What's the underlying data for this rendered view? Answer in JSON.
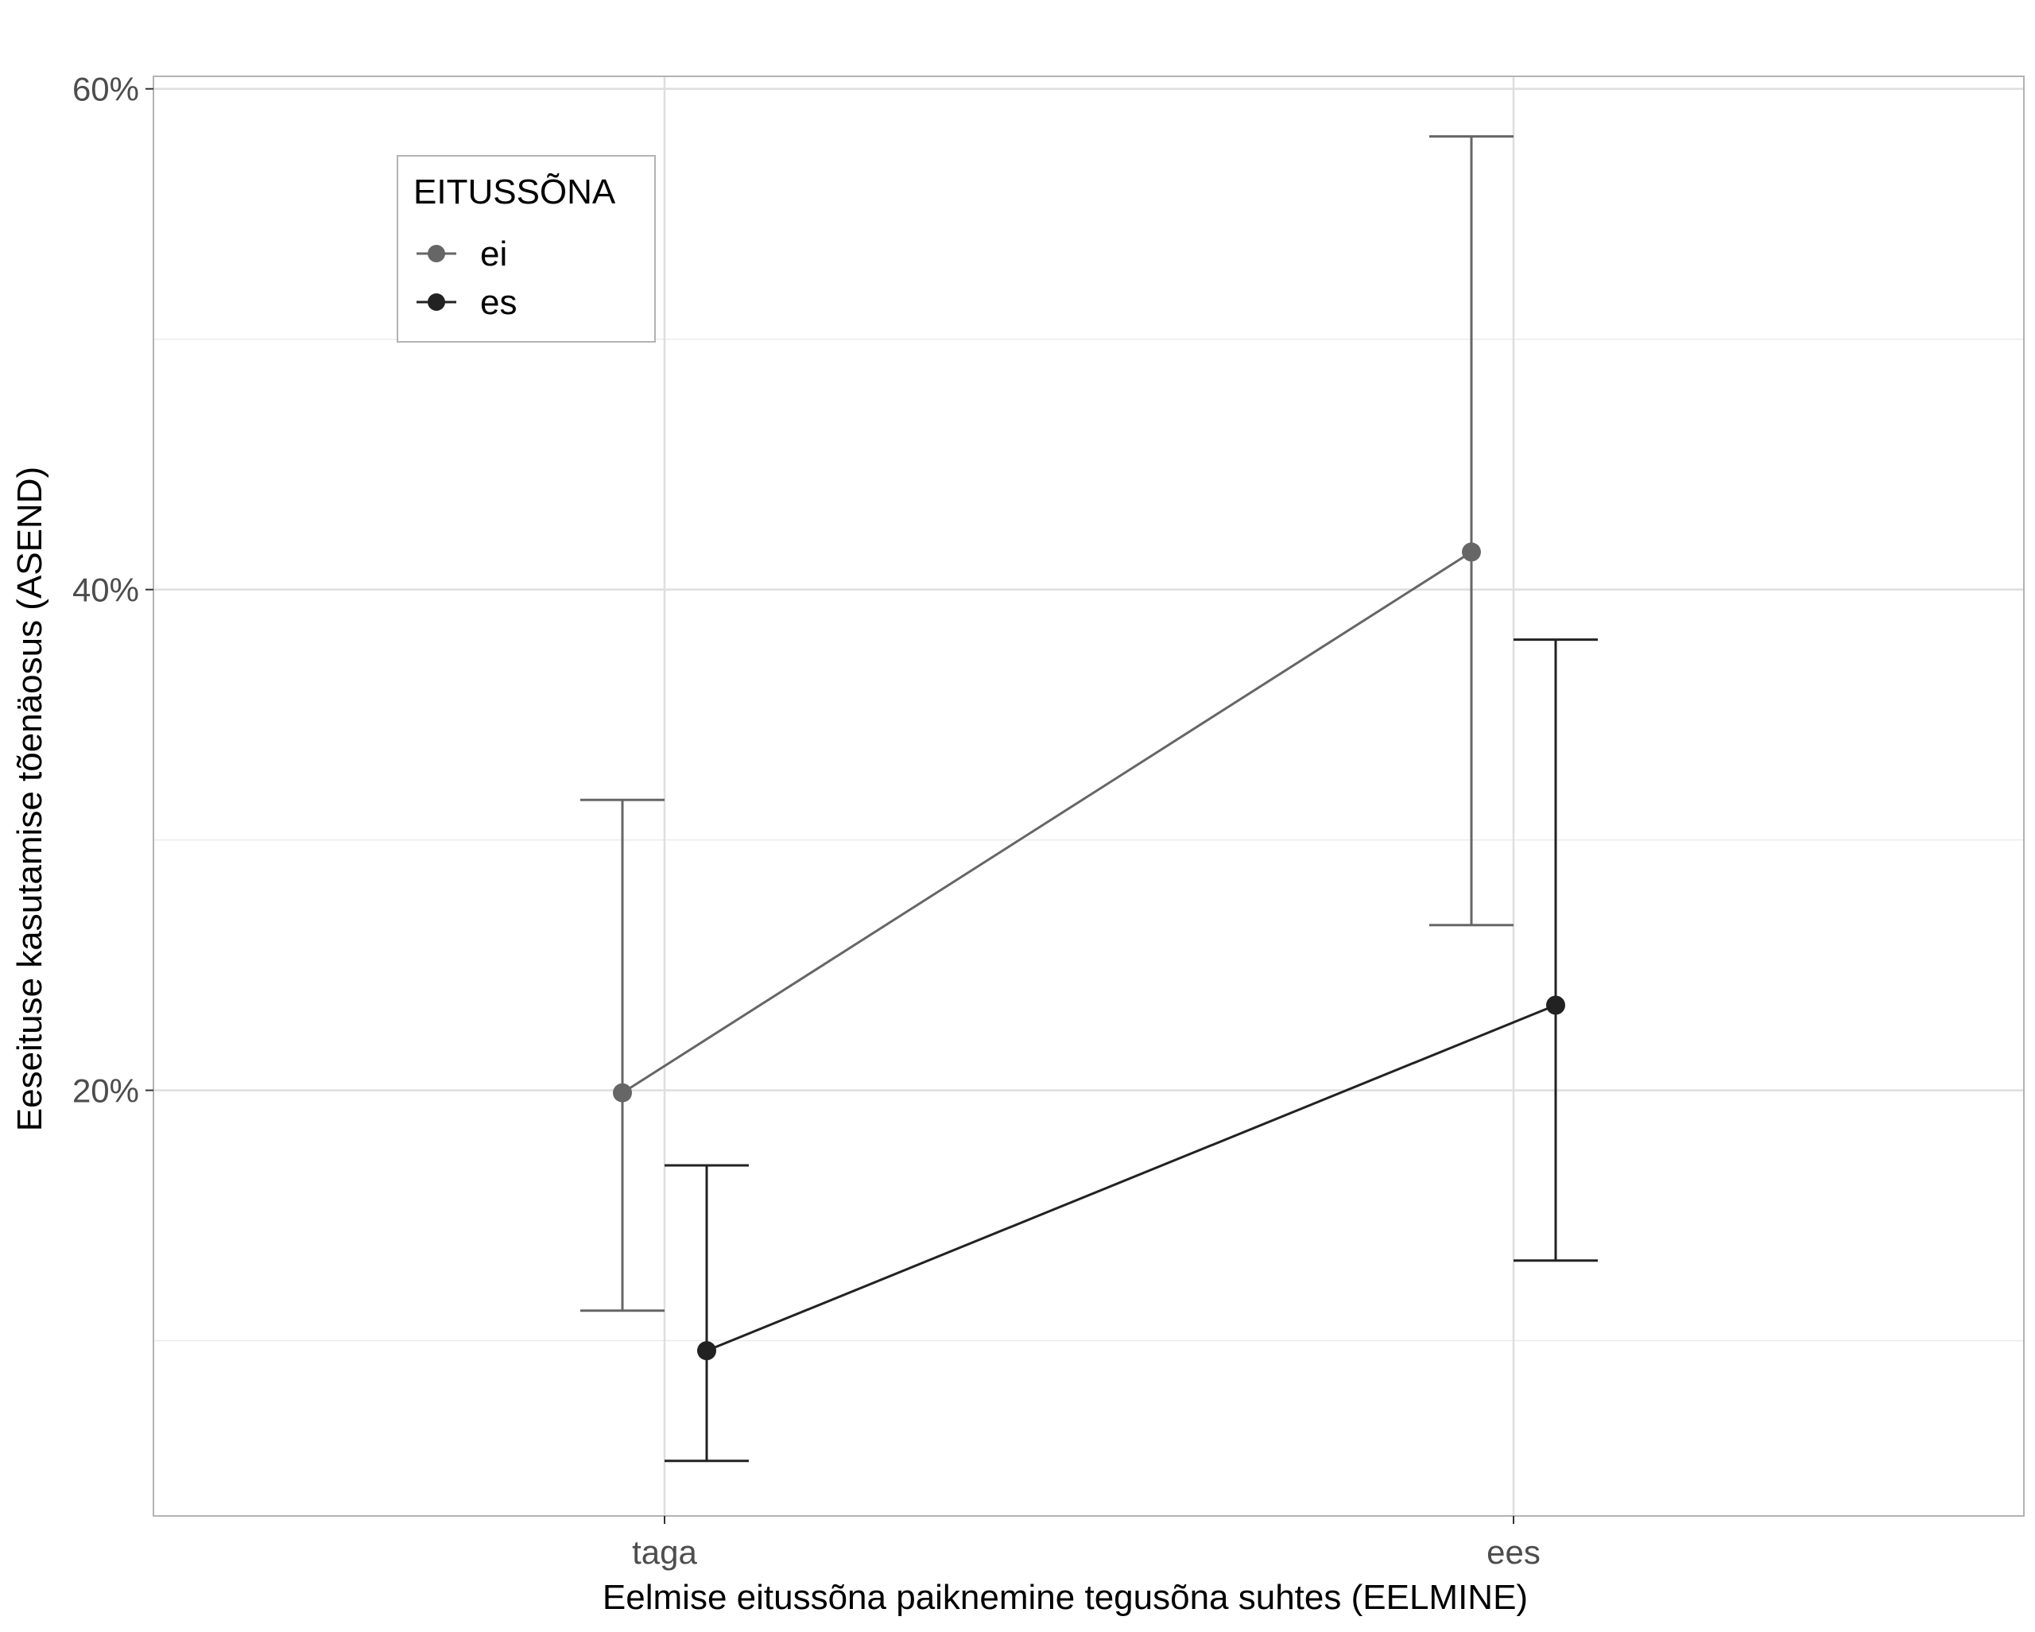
{
  "chart_data": {
    "type": "line",
    "title": "",
    "xlabel": "Eelmise eitussõna paiknemine tegusõna suhtes (EELMINE)",
    "ylabel": "Eeseituse kasutamise tõenäosus (ASEND)",
    "categories": [
      "taga",
      "ees"
    ],
    "ylim": [
      0.03,
      0.605
    ],
    "y_ticks": [
      {
        "value": 0.2,
        "label": "20%"
      },
      {
        "value": 0.4,
        "label": "40%"
      },
      {
        "value": 0.6,
        "label": "60%"
      }
    ],
    "y_minor_gridlines": [
      0.1,
      0.3,
      0.5
    ],
    "grid": true,
    "legend": {
      "title": "EITUSSÕNA",
      "position": "top-left (inside plot)"
    },
    "series": [
      {
        "name": "ei",
        "color": "#666666",
        "values": [
          0.199,
          0.415
        ],
        "ci_low": [
          0.112,
          0.266
        ],
        "ci_high": [
          0.316,
          0.581
        ]
      },
      {
        "name": "es",
        "color": "#222222",
        "values": [
          0.096,
          0.234
        ],
        "ci_low": [
          0.052,
          0.132
        ],
        "ci_high": [
          0.17,
          0.38
        ]
      }
    ]
  }
}
